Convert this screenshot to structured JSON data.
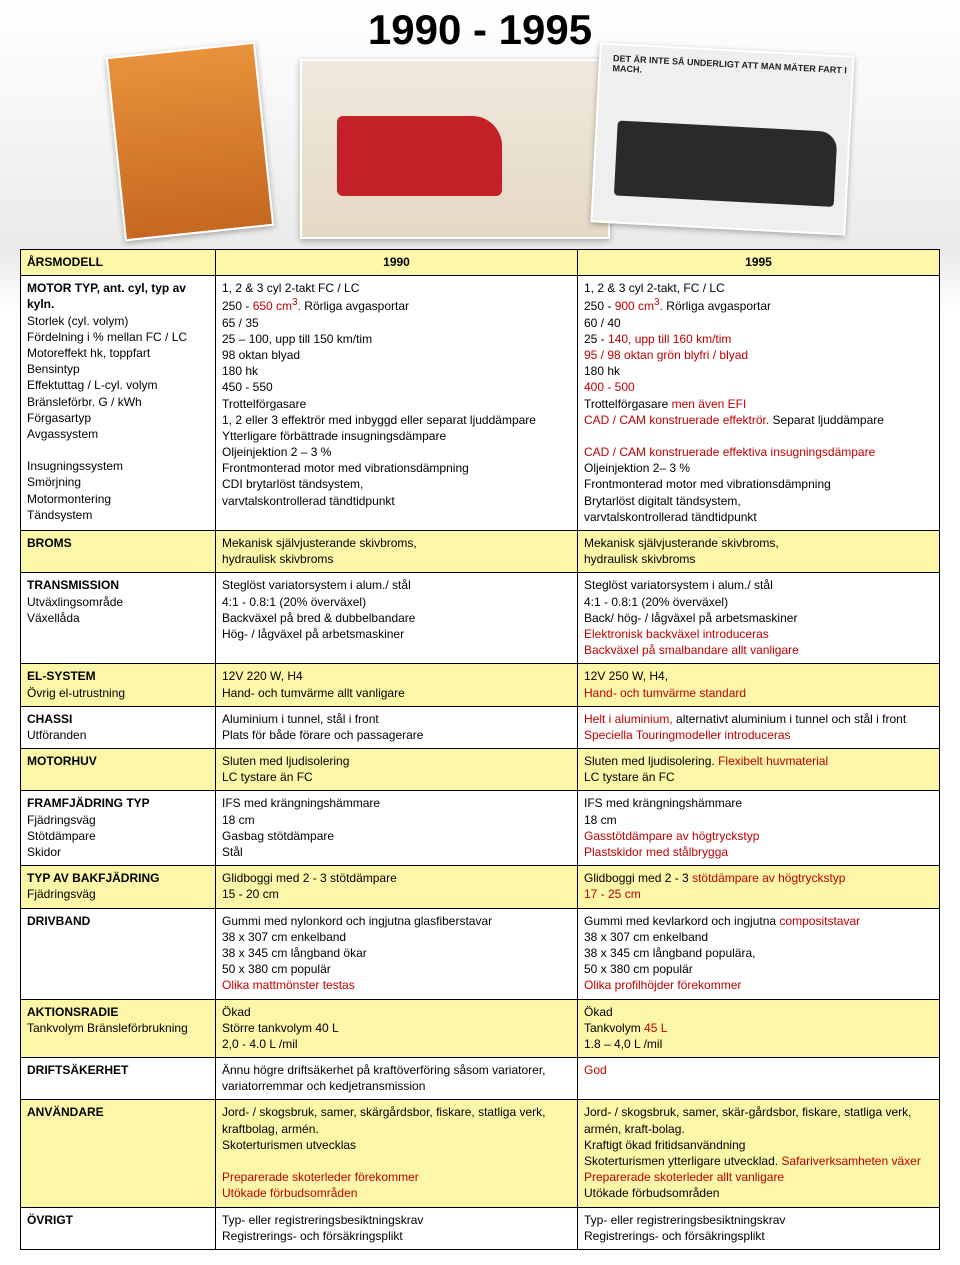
{
  "title": "1990 - 1995",
  "card3_text": "DET ÄR INTE SÅ UNDERLIGT\nATT MAN MÄTER FART I MACH.",
  "header": {
    "c1": "ÅRSMODELL",
    "c2": "1990",
    "c3": "1995"
  },
  "rows": [
    {
      "color": "white",
      "label": "<b>MOTOR TYP, ant. cyl, typ av kyln.</b><br>Storlek (cyl. volym)<br>Fördelning i % mellan FC / LC<br>Motoreffekt hk, toppfart<br>Bensintyp<br>Effektuttag / L-cyl. volym<br>Bränsleförbr. G / kWh<br>Förgasartyp<br>Avgassystem<br><br>Insugningssystem<br>Smörjning<br>Motormontering<br>Tändsystem",
      "c2": "1, 2 & 3 cyl 2-takt FC / LC<br>250 - <span class='red'>650 cm<sup>3</sup>.</span> Rörliga avgasportar<br>65 / 35<br>25 – 100, upp till 150 km/tim<br>98 oktan blyad<br>180 hk<br>450 - 550<br>Trottelförgasare<br>1, 2 eller 3 effektrör med inbyggd eller separat ljuddämpare<br>Ytterligare förbättrade insugningsdämpare<br>Oljeinjektion 2 – 3 %<br>Frontmonterad motor med vibrationsdämpning<br>CDI brytarlöst tändsystem,<br>varvtalskontrollerad tändtidpunkt",
      "c3": "1, 2 & 3 cyl 2-takt, FC / LC<br>250 - <span class='red'>900 cm<sup>3</sup>.</span> Rörliga avgasportar<br>60 / 40<br>25 - <span class='red'>140, upp till 160 km/tim</span><br><span class='red'>95 / 98 oktan grön blyfri / blyad</span><br>180 hk<br><span class='red'>400 - 500</span><br>Trottelförgasare <span class='red'>men även EFI</span><br><span class='red'>CAD / CAM konstruerade effektrör.</span> Separat ljuddämpare<br><br><span class='red'>CAD / CAM konstruerade effektiva insugningsdämpare</span><br>Oljeinjektion 2– 3 %<br>Frontmonterad motor med vibrationsdämpning<br>Brytarlöst digitalt tändsystem,<br>varvtalskontrollerad tändtidpunkt"
    },
    {
      "color": "yellow",
      "label": "<b>BROMS</b>",
      "c2": "Mekanisk självjusterande skivbroms,<br>hydraulisk skivbroms",
      "c3": "Mekanisk självjusterande skivbroms,<br>hydraulisk skivbroms"
    },
    {
      "color": "white",
      "label": "<b>TRANSMISSION</b><br>Utväxlingsområde<br>Växellåda",
      "c2": "Steglöst variatorsystem i alum./ stål<br>4:1 - 0.8:1 (20% överväxel)<br>Backväxel på bred & dubbelbandare<br>Hög- / lågväxel på arbetsmaskiner",
      "c3": "Steglöst variatorsystem i alum./ stål<br>4:1 - 0.8:1 (20% överväxel)<br>Back/ hög- / lågväxel på arbetsmaskiner<br><span class='red'>Elektronisk backväxel introduceras</span><br><span class='red'>Backväxel på smalbandare allt vanligare</span>"
    },
    {
      "color": "yellow",
      "label": "<b>EL-SYSTEM</b><br>Övrig el-utrustning",
      "c2": "12V  220 W, H4<br>Hand- och tumvärme allt  vanligare",
      "c3": "12V 250 W, H4,<br><span class='red'>Hand- och tumvärme standard</span>"
    },
    {
      "color": "white",
      "label": "<b>CHASSI</b><br>Utföranden",
      "c2": "Aluminium i tunnel, stål i front<br>Plats för både förare och passagerare",
      "c3": "<span class='red'>Helt i aluminium,</span> alternativt aluminium i tunnel och stål i front<br><span class='red'>Speciella Touringmodeller introduceras</span>"
    },
    {
      "color": "yellow",
      "label": "<b>MOTORHUV</b>",
      "c2": "Sluten med ljudisolering<br>LC tystare än FC",
      "c3": "Sluten med ljudisolering. <span class='red'>Flexibelt huvmaterial</span><br>LC tystare än FC"
    },
    {
      "color": "white",
      "label": "<b>FRAMFJÄDRING TYP</b><br>Fjädringsväg<br>Stötdämpare<br>Skidor",
      "c2": "IFS med krängningshämmare<br>18 cm<br>Gasbag stötdämpare<br>Stål",
      "c3": "IFS med krängningshämmare<br>18 cm<br><span class='red'>Gasstötdämpare av högtryckstyp</span><br><span class='red'>Plastskidor med stålbrygga</span>"
    },
    {
      "color": "yellow",
      "label": "<b>TYP AV BAKFJÄDRING</b><br>Fjädringsväg",
      "c2": "Glidboggi med 2 - 3 stötdämpare<br>15 - 20 cm",
      "c3": "Glidboggi med 2 - 3 <span class='red'>stötdämpare av högtryckstyp</span><br><span class='red'>17 - 25 cm</span>"
    },
    {
      "color": "white",
      "label": "<b>DRIVBAND</b>",
      "c2": "Gummi med nylonkord och ingjutna glasfiberstavar<br>38 x 307 cm enkelband<br>38 x 345 cm långband ökar<br>50 x 380 cm populär<br><span class='red'>Olika mattmönster testas</span>",
      "c3": "Gummi med kevlarkord och ingjutna <span class='red'>compositstavar</span><br>38 x 307 cm enkelband<br>38 x 345 cm långband populära,<br>50 x 380 cm populär<br><span class='red'>Olika profilhöjder förekommer</span>"
    },
    {
      "color": "yellow",
      "label": "<b>AKTIONSRADIE</b><br>Tankvolym Bränsleförbrukning",
      "c2": "Ökad<br>Större tankvolym 40 L<br>2,0 - 4.0 L /mil",
      "c3": "Ökad<br>Tankvolym <span class='red'>45 L</span><br>1.8 – 4,0 L /mil"
    },
    {
      "color": "white",
      "label": "<b>DRIFTSÄKERHET</b>",
      "c2": "Ännu högre driftsäkerhet  på kraftöverföring såsom variatorer, variatorremmar och kedjetransmission",
      "c3": "<span class='red'>God</span>"
    },
    {
      "color": "yellow",
      "label": "<b>ANVÄNDARE</b>",
      "c2": "Jord- / skogsbruk, samer, skärgårdsbor, fiskare, statliga verk, kraftbolag, armén.<br>Skoterturismen utvecklas<br><br><span class='red'>Preparerade skoterleder förekommer</span><br><span class='red'>Utökade förbudsområden</span>",
      "c3": "Jord- / skogsbruk, samer, skär-gårdsbor, fiskare, statliga verk, armén, kraft-bolag.<br>Kraftigt ökad fritidsanvändning<br>Skoterturismen ytterligare utvecklad. <span class='red'>Safariverksamheten växer</span><br><span class='red'>Preparerade skoterleder allt vanligare</span><br>Utökade förbudsområden"
    },
    {
      "color": "white",
      "label": "<b>ÖVRIGT</b>",
      "c2": "Typ- eller registreringsbesiktningskrav<br>Registrerings- och försäkringsplikt",
      "c3": "Typ- eller registreringsbesiktningskrav<br>Registrerings- och försäkringsplikt"
    }
  ]
}
